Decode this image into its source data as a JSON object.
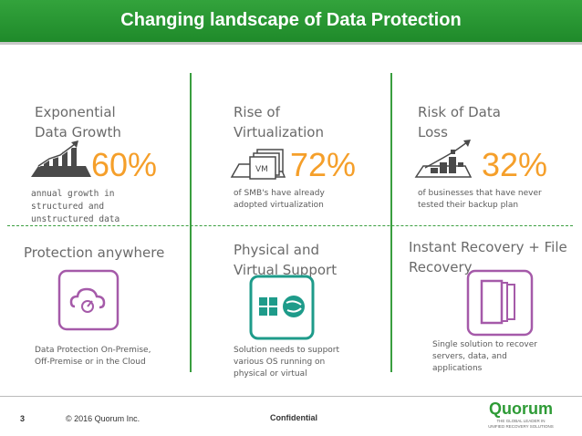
{
  "title": "Changing landscape of Data Protection",
  "cells": [
    {
      "heading": "Exponential\nData Growth",
      "value": "60%",
      "desc": "annual growth in\nstructured and\nunstructured data"
    },
    {
      "heading": "Rise of\nVirtualization",
      "value": "72%",
      "desc": "of SMB's have already\nadopted virtualization",
      "vm_label": "VM"
    },
    {
      "heading": "Risk of Data\nLoss",
      "value": "32%",
      "desc": "of businesses that have never\ntested their backup plan"
    },
    {
      "heading": "Protection anywhere",
      "desc": "Data Protection On-Premise,\nOff-Premise or in the Cloud"
    },
    {
      "heading": "Physical and\nVirtual Support",
      "desc": "Solution needs to support\nvarious OS running on\nphysical or virtual"
    },
    {
      "heading": "Instant Recovery + File\nRecovery",
      "desc": "Single solution to recover\nservers, data, and\napplications"
    }
  ],
  "footer": {
    "page": "3",
    "copyright": "© 2016 Quorum Inc.",
    "confidential": "Confidential",
    "logo": "Quorum",
    "logo_tagline": "THE GLOBAL LEADER IN\nUNIFIED RECOVERY SOLUTIONS"
  },
  "colors": {
    "green": "#2e9b36",
    "orange": "#f59f2a",
    "purple": "#a55aa9",
    "teal": "#1e9b8a",
    "gray": "#4a4a4a"
  }
}
